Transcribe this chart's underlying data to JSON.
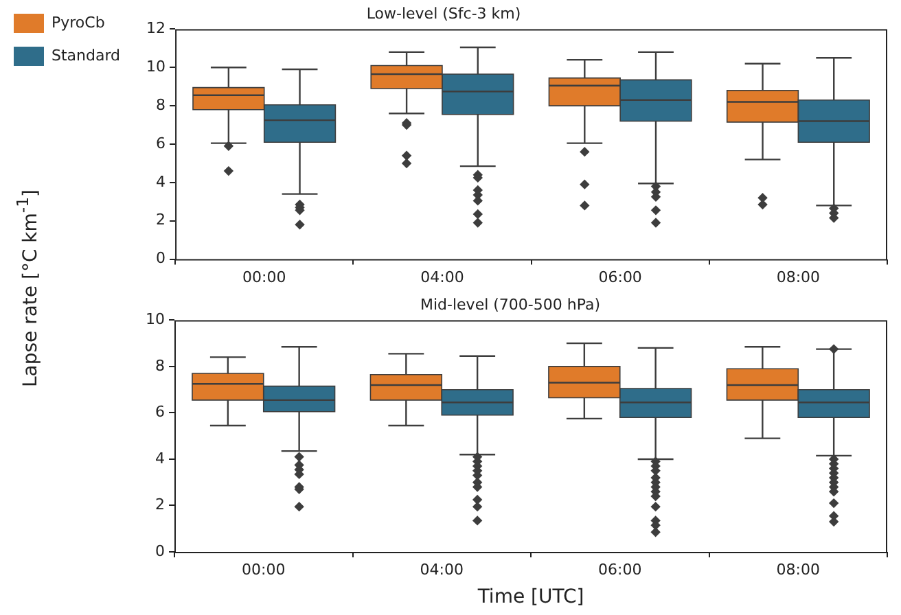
{
  "chart_data": [
    {
      "type": "box",
      "title": "Low-level (Sfc-3 km)",
      "ylabel": "Lapse rate [°C km$^{-1}$]",
      "categories": [
        "00:00",
        "04:00",
        "06:00",
        "08:00"
      ],
      "ylim": [
        0,
        12
      ],
      "yticks": [
        0,
        2,
        4,
        6,
        8,
        10,
        12
      ],
      "grid": false,
      "legend": "top left",
      "marker": "diamond",
      "series": [
        {
          "name": "PyroCb",
          "color": "#e07b2a",
          "boxes": [
            {
              "low": 6.05,
              "q1": 7.8,
              "median": 8.55,
              "q3": 8.95,
              "high": 10.0,
              "outliers": [
                5.9,
                4.6
              ]
            },
            {
              "low": 7.6,
              "q1": 8.9,
              "median": 9.65,
              "q3": 10.1,
              "high": 10.8,
              "outliers": [
                7.1,
                7.0,
                5.4,
                5.0
              ]
            },
            {
              "low": 6.05,
              "q1": 8.0,
              "median": 9.05,
              "q3": 9.45,
              "high": 10.4,
              "outliers": [
                5.6,
                3.9,
                2.8
              ]
            },
            {
              "low": 5.2,
              "q1": 7.15,
              "median": 8.2,
              "q3": 8.8,
              "high": 10.2,
              "outliers": [
                3.2,
                2.85
              ]
            }
          ]
        },
        {
          "name": "Standard",
          "color": "#2f6d8a",
          "boxes": [
            {
              "low": 3.4,
              "q1": 6.1,
              "median": 7.25,
              "q3": 8.05,
              "high": 9.9,
              "outliers": [
                2.85,
                2.7,
                2.55,
                1.8
              ]
            },
            {
              "low": 4.85,
              "q1": 7.55,
              "median": 8.75,
              "q3": 9.65,
              "high": 11.05,
              "outliers": [
                4.4,
                4.25,
                3.6,
                3.35,
                3.05,
                2.35,
                1.9
              ]
            },
            {
              "low": 3.95,
              "q1": 7.2,
              "median": 8.3,
              "q3": 9.35,
              "high": 10.8,
              "outliers": [
                3.8,
                3.5,
                3.25,
                2.55,
                1.9
              ]
            },
            {
              "low": 2.8,
              "q1": 6.1,
              "median": 7.2,
              "q3": 8.3,
              "high": 10.5,
              "outliers": [
                2.65,
                2.4,
                2.15
              ]
            }
          ]
        }
      ]
    },
    {
      "type": "box",
      "title": "Mid-level (700-500 hPa)",
      "xlabel": "Time [UTC]",
      "categories": [
        "00:00",
        "04:00",
        "06:00",
        "08:00"
      ],
      "ylim": [
        0,
        10
      ],
      "yticks": [
        0,
        2,
        4,
        6,
        8,
        10
      ],
      "grid": false,
      "marker": "diamond",
      "series": [
        {
          "color": "#e07b2a",
          "boxes": [
            {
              "low": 5.45,
              "q1": 6.55,
              "median": 7.25,
              "q3": 7.7,
              "high": 8.4
            },
            {
              "low": 5.45,
              "q1": 6.55,
              "median": 7.2,
              "q3": 7.65,
              "high": 8.55
            },
            {
              "low": 5.75,
              "q1": 6.65,
              "median": 7.3,
              "q3": 8.0,
              "high": 9.0
            },
            {
              "low": 4.9,
              "q1": 6.55,
              "median": 7.2,
              "q3": 7.9,
              "high": 8.85
            }
          ]
        },
        {
          "color": "#2f6d8a",
          "boxes": [
            {
              "low": 4.35,
              "q1": 6.05,
              "median": 6.55,
              "q3": 7.15,
              "high": 8.85,
              "outliers": [
                4.1,
                3.75,
                3.55,
                3.35,
                2.8,
                2.7,
                1.95
              ]
            },
            {
              "low": 4.2,
              "q1": 5.9,
              "median": 6.45,
              "q3": 7.0,
              "high": 8.45,
              "outliers": [
                4.1,
                3.9,
                3.7,
                3.5,
                3.3,
                3.0,
                2.8,
                2.25,
                1.95,
                1.35
              ]
            },
            {
              "low": 4.0,
              "q1": 5.8,
              "median": 6.45,
              "q3": 7.05,
              "high": 8.8,
              "outliers": [
                3.9,
                3.7,
                3.5,
                3.2,
                3.0,
                2.8,
                2.6,
                2.4,
                1.95,
                1.35,
                1.15,
                0.85
              ]
            },
            {
              "low": 4.15,
              "q1": 5.8,
              "median": 6.45,
              "q3": 7.0,
              "high": 8.75,
              "outliers": [
                8.75,
                4.0,
                3.8,
                3.6,
                3.4,
                3.2,
                3.0,
                2.8,
                2.6,
                2.1,
                1.55,
                1.3
              ]
            }
          ]
        }
      ]
    }
  ]
}
